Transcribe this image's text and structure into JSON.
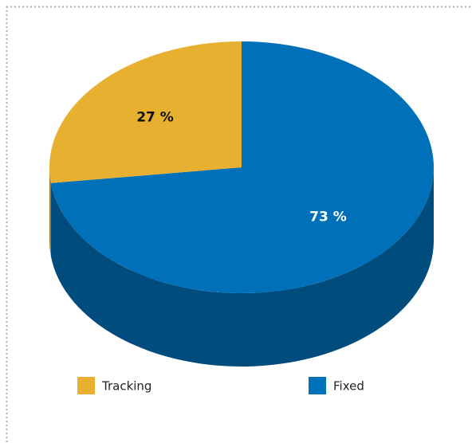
{
  "chart_data": {
    "type": "pie",
    "categories": [
      "Tracking",
      "Fixed"
    ],
    "values": [
      27,
      73
    ],
    "value_labels": [
      "27 %",
      "73 %"
    ],
    "colors": [
      "#e8b030",
      "#0070b8"
    ],
    "legend": "bottom"
  }
}
